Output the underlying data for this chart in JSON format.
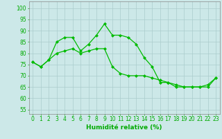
{
  "line1_x": [
    0,
    1,
    2,
    3,
    4,
    5,
    6,
    7,
    8,
    9,
    10,
    11,
    12,
    13,
    14,
    15,
    16,
    17,
    18,
    19,
    20,
    21,
    22,
    23
  ],
  "line1_y": [
    76,
    74,
    77,
    85,
    87,
    87,
    81,
    84,
    88,
    93,
    88,
    88,
    87,
    84,
    78,
    74,
    67,
    67,
    66,
    65,
    65,
    65,
    66,
    69
  ],
  "line2_x": [
    0,
    1,
    2,
    3,
    4,
    5,
    6,
    7,
    8,
    9,
    10,
    11,
    12,
    13,
    14,
    15,
    16,
    17,
    18,
    19,
    20,
    21,
    22,
    23
  ],
  "line2_y": [
    76,
    74,
    77,
    80,
    81,
    82,
    80,
    81,
    82,
    82,
    74,
    71,
    70,
    70,
    70,
    69,
    68,
    67,
    65,
    65,
    65,
    65,
    65,
    69
  ],
  "line_color": "#00bb00",
  "marker": "D",
  "markersize": 2.0,
  "linewidth": 0.9,
  "xlabel": "Humidité relative (%)",
  "xlabel_fontsize": 6.5,
  "xlabel_color": "#00aa00",
  "ylabel_ticks": [
    55,
    60,
    65,
    70,
    75,
    80,
    85,
    90,
    95,
    100
  ],
  "xlim": [
    -0.5,
    23.5
  ],
  "ylim": [
    53,
    103
  ],
  "bg_color": "#cce8e8",
  "grid_color": "#aacccc",
  "tick_color": "#00aa00",
  "tick_fontsize": 5.5
}
